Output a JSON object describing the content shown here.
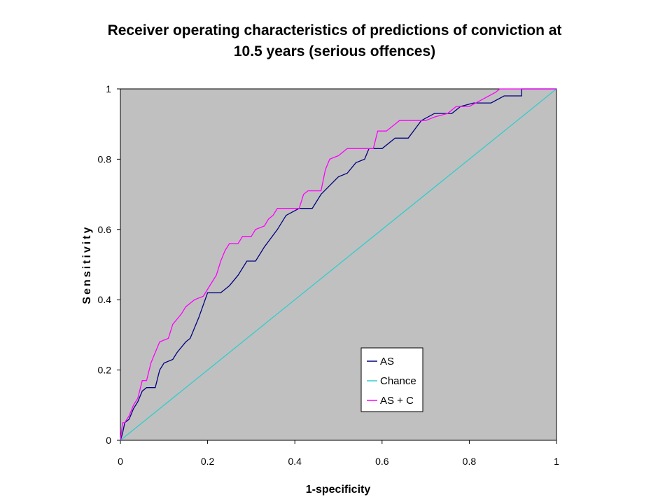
{
  "chart_data": {
    "type": "line",
    "title_lines": [
      "Receiver operating characteristics of predictions of conviction at",
      "10.5 years (serious offences)"
    ],
    "xlabel": "1-specificity",
    "ylabel": "Sensitivity",
    "xlim": [
      0,
      1
    ],
    "ylim": [
      0,
      1
    ],
    "x_ticks": [
      "0",
      "0.2",
      "0.4",
      "0.6",
      "0.8",
      "1"
    ],
    "y_ticks": [
      "0",
      "0.2",
      "0.4",
      "0.6",
      "0.8",
      "1"
    ],
    "plot_background": "#c0c0c0",
    "grid": false,
    "legend_position": "bottom-right",
    "series": [
      {
        "name": "AS",
        "color": "#000080",
        "points": [
          [
            0,
            0
          ],
          [
            0.005,
            0.02
          ],
          [
            0.01,
            0.05
          ],
          [
            0.02,
            0.06
          ],
          [
            0.03,
            0.09
          ],
          [
            0.04,
            0.11
          ],
          [
            0.05,
            0.14
          ],
          [
            0.06,
            0.15
          ],
          [
            0.08,
            0.15
          ],
          [
            0.09,
            0.2
          ],
          [
            0.1,
            0.22
          ],
          [
            0.12,
            0.23
          ],
          [
            0.13,
            0.25
          ],
          [
            0.15,
            0.28
          ],
          [
            0.16,
            0.29
          ],
          [
            0.18,
            0.35
          ],
          [
            0.2,
            0.42
          ],
          [
            0.22,
            0.42
          ],
          [
            0.23,
            0.42
          ],
          [
            0.25,
            0.44
          ],
          [
            0.27,
            0.47
          ],
          [
            0.29,
            0.51
          ],
          [
            0.31,
            0.51
          ],
          [
            0.33,
            0.55
          ],
          [
            0.36,
            0.6
          ],
          [
            0.38,
            0.64
          ],
          [
            0.41,
            0.66
          ],
          [
            0.44,
            0.66
          ],
          [
            0.46,
            0.7
          ],
          [
            0.5,
            0.75
          ],
          [
            0.52,
            0.76
          ],
          [
            0.54,
            0.79
          ],
          [
            0.56,
            0.8
          ],
          [
            0.57,
            0.83
          ],
          [
            0.6,
            0.83
          ],
          [
            0.63,
            0.86
          ],
          [
            0.66,
            0.86
          ],
          [
            0.69,
            0.91
          ],
          [
            0.72,
            0.93
          ],
          [
            0.76,
            0.93
          ],
          [
            0.78,
            0.95
          ],
          [
            0.81,
            0.96
          ],
          [
            0.85,
            0.96
          ],
          [
            0.88,
            0.98
          ],
          [
            0.92,
            0.98
          ],
          [
            0.92,
            1.0
          ],
          [
            1.0,
            1.0
          ]
        ]
      },
      {
        "name": "Chance",
        "color": "#33cccc",
        "points": [
          [
            0,
            0
          ],
          [
            1,
            1
          ]
        ]
      },
      {
        "name": "AS + C",
        "color": "#ff00ff",
        "points": [
          [
            0,
            0
          ],
          [
            0.005,
            0.05
          ],
          [
            0.01,
            0.05
          ],
          [
            0.02,
            0.07
          ],
          [
            0.03,
            0.1
          ],
          [
            0.04,
            0.12
          ],
          [
            0.05,
            0.17
          ],
          [
            0.06,
            0.17
          ],
          [
            0.07,
            0.22
          ],
          [
            0.08,
            0.25
          ],
          [
            0.09,
            0.28
          ],
          [
            0.11,
            0.29
          ],
          [
            0.12,
            0.33
          ],
          [
            0.14,
            0.36
          ],
          [
            0.15,
            0.38
          ],
          [
            0.17,
            0.4
          ],
          [
            0.19,
            0.41
          ],
          [
            0.21,
            0.45
          ],
          [
            0.22,
            0.47
          ],
          [
            0.23,
            0.51
          ],
          [
            0.24,
            0.54
          ],
          [
            0.25,
            0.56
          ],
          [
            0.27,
            0.56
          ],
          [
            0.28,
            0.58
          ],
          [
            0.3,
            0.58
          ],
          [
            0.31,
            0.6
          ],
          [
            0.33,
            0.61
          ],
          [
            0.34,
            0.63
          ],
          [
            0.35,
            0.64
          ],
          [
            0.36,
            0.66
          ],
          [
            0.41,
            0.66
          ],
          [
            0.42,
            0.7
          ],
          [
            0.43,
            0.71
          ],
          [
            0.46,
            0.71
          ],
          [
            0.47,
            0.77
          ],
          [
            0.48,
            0.8
          ],
          [
            0.5,
            0.81
          ],
          [
            0.52,
            0.83
          ],
          [
            0.58,
            0.83
          ],
          [
            0.59,
            0.88
          ],
          [
            0.61,
            0.88
          ],
          [
            0.63,
            0.9
          ],
          [
            0.64,
            0.91
          ],
          [
            0.67,
            0.91
          ],
          [
            0.7,
            0.91
          ],
          [
            0.72,
            0.92
          ],
          [
            0.75,
            0.93
          ],
          [
            0.77,
            0.95
          ],
          [
            0.8,
            0.95
          ],
          [
            0.83,
            0.97
          ],
          [
            0.86,
            0.99
          ],
          [
            0.87,
            1.0
          ],
          [
            1.0,
            1.0
          ]
        ]
      }
    ]
  }
}
